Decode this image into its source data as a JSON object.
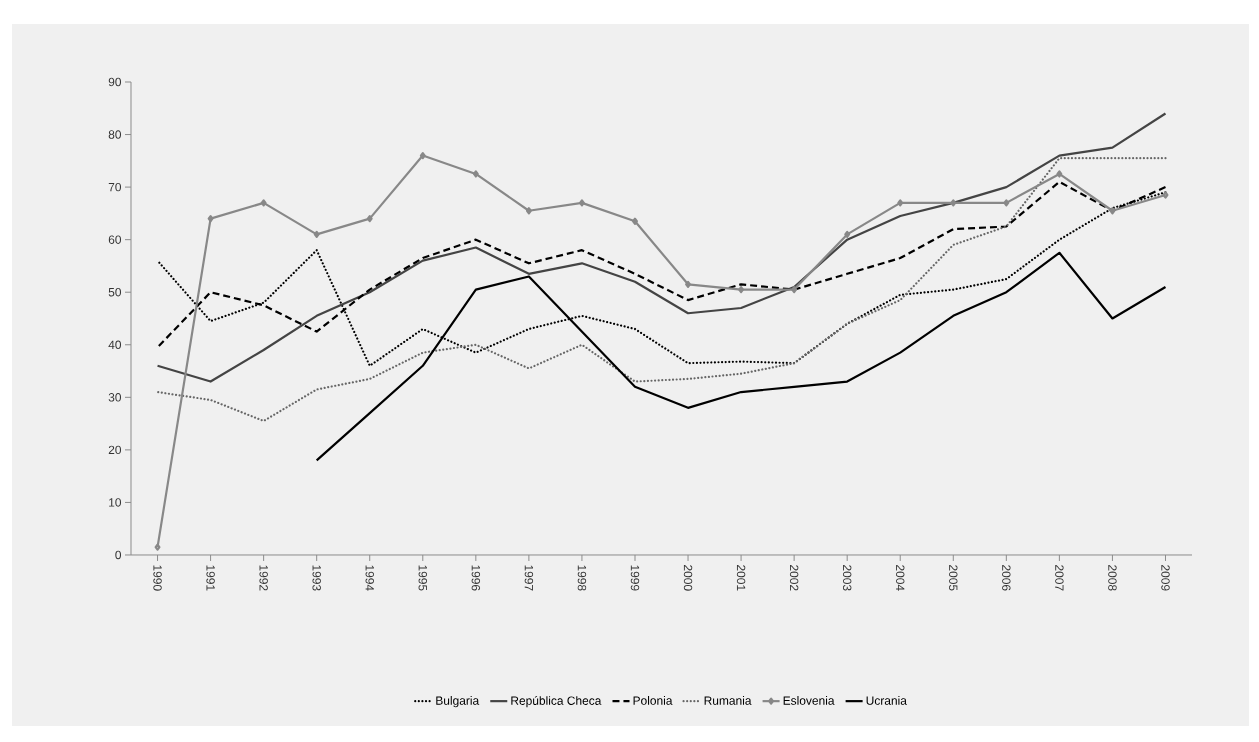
{
  "chart_data": {
    "type": "line",
    "categories": [
      "1990",
      "1991",
      "1992",
      "1993",
      "1994",
      "1995",
      "1996",
      "1997",
      "1998",
      "1999",
      "2000",
      "2001",
      "2002",
      "2003",
      "2004",
      "2005",
      "2006",
      "2007",
      "2008",
      "2009"
    ],
    "series": [
      {
        "name": "Bulgaria",
        "color": "#000000",
        "line_style": "dotted",
        "values": [
          56,
          44.5,
          48,
          58,
          36,
          43,
          38.5,
          43,
          45.5,
          43,
          36.5,
          36.8,
          36.5,
          44,
          49.5,
          50.5,
          52.5,
          60,
          66,
          69
        ]
      },
      {
        "name": "República Checa",
        "color": "#444444",
        "line_style": "solid",
        "values": [
          36,
          33,
          39,
          45.5,
          50,
          56,
          58.5,
          53.5,
          55.5,
          52,
          46,
          47,
          51,
          60,
          64.5,
          67,
          70,
          76,
          77.5,
          84
        ]
      },
      {
        "name": "Polonia",
        "color": "#000000",
        "line_style": "dashed",
        "values": [
          39.5,
          50,
          47.5,
          42.5,
          50.5,
          56.5,
          60,
          55.5,
          58,
          53.5,
          48.5,
          51.5,
          50.5,
          53.5,
          56.5,
          62,
          62.5,
          71,
          65.5,
          70
        ]
      },
      {
        "name": "Rumania",
        "color": "#666666",
        "line_style": "dotted",
        "values": [
          31,
          29.5,
          25.5,
          31.5,
          33.5,
          38.5,
          40,
          35.5,
          40,
          33,
          33.5,
          34.5,
          36.5,
          44,
          48.5,
          59,
          62.5,
          75.5,
          75.5,
          75.5
        ]
      },
      {
        "name": "Eslovenia",
        "color": "#888888",
        "line_style": "solid",
        "marker": "diamond",
        "values": [
          1.5,
          64,
          67,
          61,
          64,
          76,
          72.5,
          65.5,
          67,
          63.5,
          51.5,
          50.5,
          50.5,
          61,
          67,
          67,
          67,
          72.5,
          65.5,
          68.5
        ]
      },
      {
        "name": "Ucrania",
        "color": "#000000",
        "line_style": "solid",
        "values": [
          null,
          null,
          null,
          18,
          27,
          36,
          50.5,
          53,
          42.5,
          32,
          28,
          31,
          32,
          33,
          38.5,
          45.5,
          50,
          57.5,
          45,
          51
        ]
      }
    ],
    "ylim": [
      0,
      90
    ],
    "yticks": [
      0,
      10,
      20,
      30,
      40,
      50,
      60,
      70,
      80,
      90
    ],
    "grid": false,
    "legend": "bottom"
  }
}
